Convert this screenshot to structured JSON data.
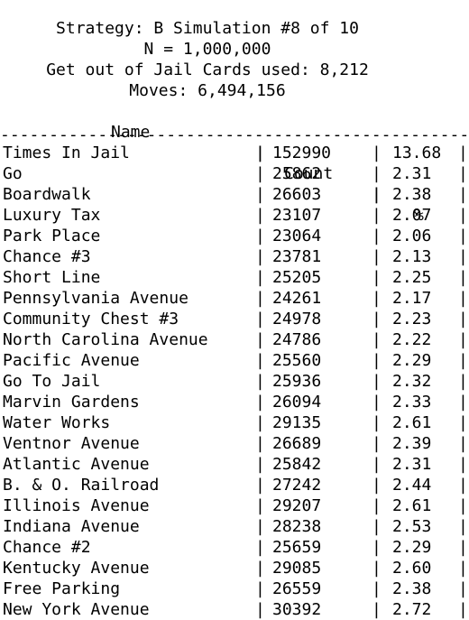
{
  "header": {
    "strategy_line": "Strategy: B Simulation #8 of 10",
    "n_line": "N = 1,000,000",
    "cards_line": "Get out of Jail Cards used: 8,212",
    "moves_line": "Moves: 6,494,156"
  },
  "table": {
    "columns": [
      "Name",
      "Count",
      "%"
    ],
    "separator": "|",
    "rule": "------------------------------------------------------------",
    "rows": [
      {
        "name": "Times In Jail",
        "count": "152990",
        "pct": "13.68"
      },
      {
        "name": "Go",
        "count": "25862",
        "pct": "2.31"
      },
      {
        "name": "Boardwalk",
        "count": "26603",
        "pct": "2.38"
      },
      {
        "name": "Luxury Tax",
        "count": "23107",
        "pct": "2.07"
      },
      {
        "name": "Park Place",
        "count": "23064",
        "pct": "2.06"
      },
      {
        "name": "Chance #3",
        "count": "23781",
        "pct": "2.13"
      },
      {
        "name": "Short Line",
        "count": "25205",
        "pct": "2.25"
      },
      {
        "name": "Pennsylvania Avenue",
        "count": "24261",
        "pct": "2.17"
      },
      {
        "name": "Community Chest #3",
        "count": "24978",
        "pct": "2.23"
      },
      {
        "name": "North Carolina Avenue",
        "count": "24786",
        "pct": "2.22"
      },
      {
        "name": "Pacific Avenue",
        "count": "25560",
        "pct": "2.29"
      },
      {
        "name": "Go To Jail",
        "count": "25936",
        "pct": "2.32"
      },
      {
        "name": "Marvin Gardens",
        "count": "26094",
        "pct": "2.33"
      },
      {
        "name": "Water Works",
        "count": "29135",
        "pct": "2.61"
      },
      {
        "name": "Ventnor Avenue",
        "count": "26689",
        "pct": "2.39"
      },
      {
        "name": "Atlantic Avenue",
        "count": "25842",
        "pct": "2.31"
      },
      {
        "name": "B. & O. Railroad",
        "count": "27242",
        "pct": "2.44"
      },
      {
        "name": "Illinois Avenue",
        "count": "29207",
        "pct": "2.61"
      },
      {
        "name": "Indiana Avenue",
        "count": "28238",
        "pct": "2.53"
      },
      {
        "name": "Chance #2",
        "count": "25659",
        "pct": "2.29"
      },
      {
        "name": "Kentucky Avenue",
        "count": "29085",
        "pct": "2.60"
      },
      {
        "name": "Free Parking",
        "count": "26559",
        "pct": "2.38"
      },
      {
        "name": "New York Avenue",
        "count": "30392",
        "pct": "2.72"
      }
    ]
  }
}
